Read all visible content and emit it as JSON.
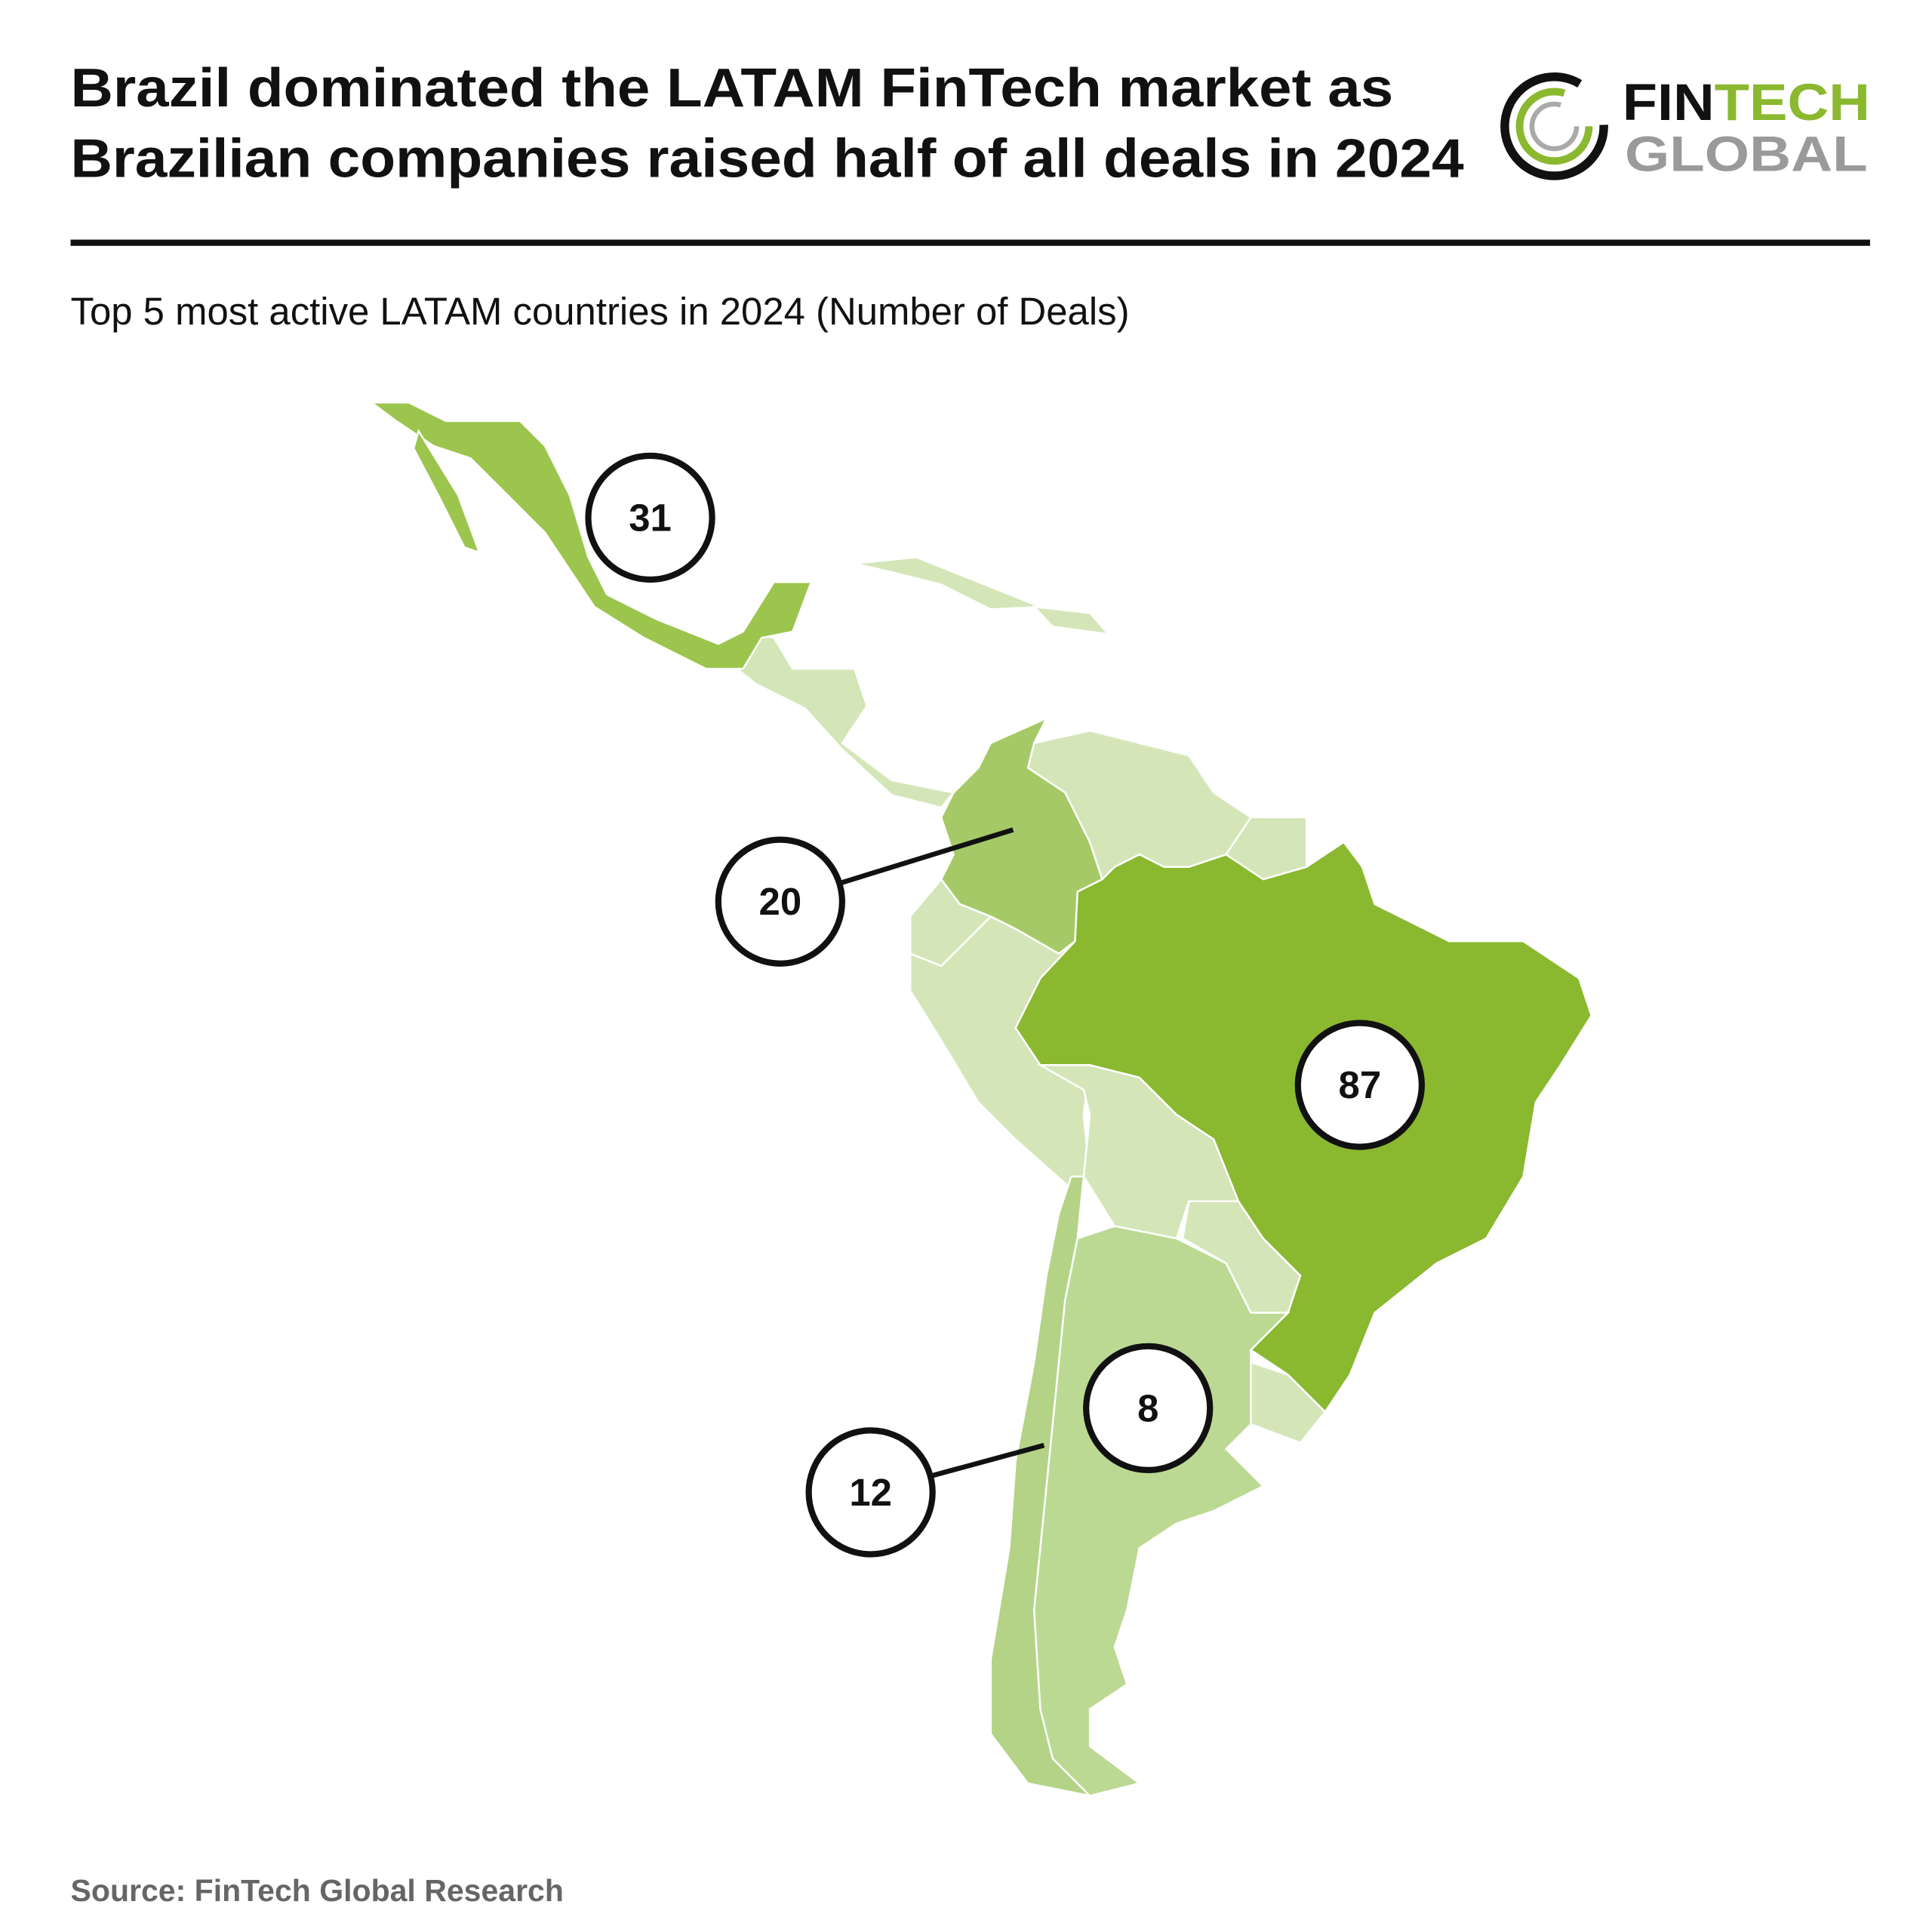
{
  "chart_data": {
    "type": "map",
    "title": [
      "Brazil dominated the LATAM FinTech market as",
      "Brazilian companies raised half of all deals in 2024"
    ],
    "subtitle": "Top 5 most active LATAM countries in 2024 (Number of Deals)",
    "source": "Source: FinTech Global Research",
    "logo_text": [
      "FIN",
      "TECH",
      "GLOBAL"
    ],
    "values": [
      87,
      31,
      20,
      12,
      8
    ],
    "colors": [
      "#8ab82f",
      "#9bc54c",
      "#a6c967",
      "#b4d386",
      "#bcd993"
    ],
    "other_color": "#d4e6b8"
  }
}
